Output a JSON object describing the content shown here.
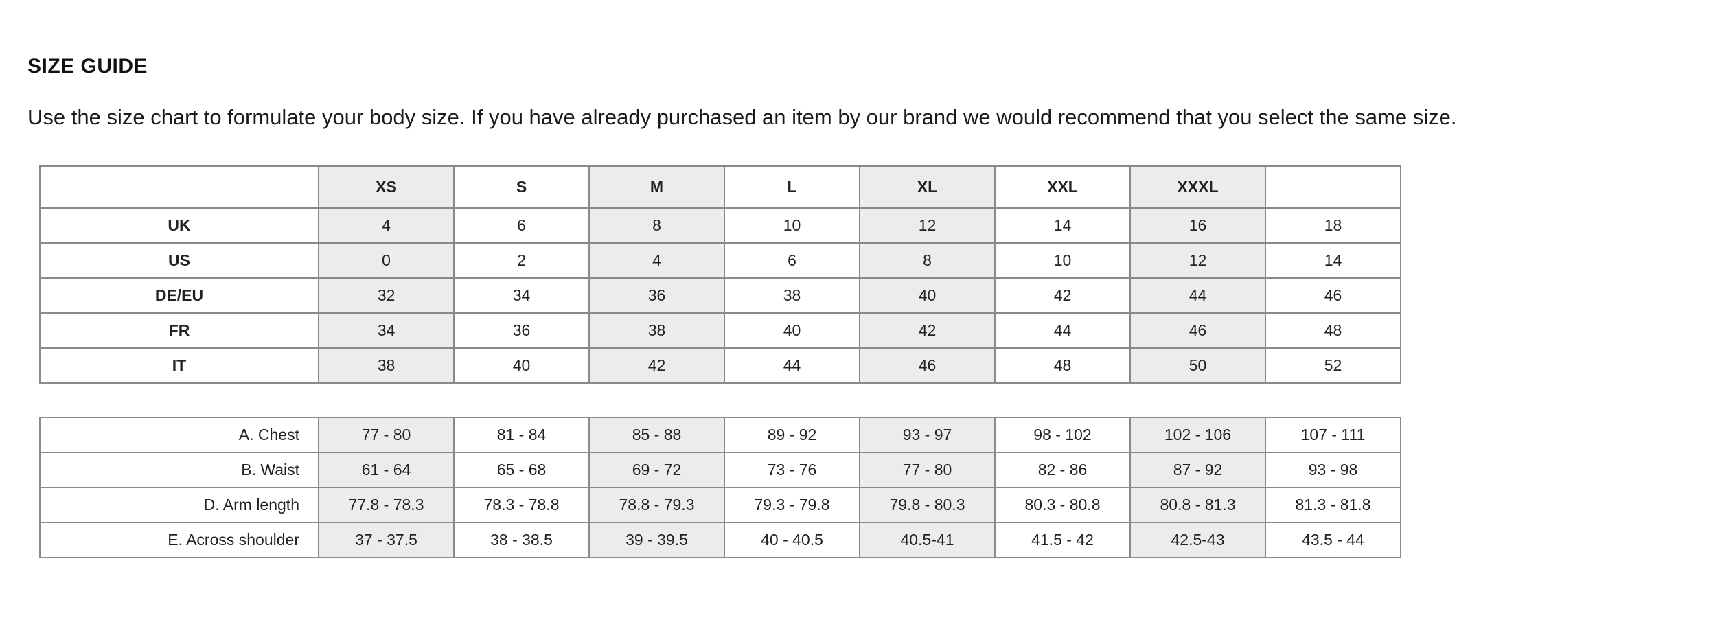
{
  "title": "SIZE GUIDE",
  "intro": "Use the size chart to formulate your body size. If you have already purchased an item by our brand we would recommend that you select the same size.",
  "shade_color": "#ececec",
  "size_table": {
    "headers": [
      "",
      "XS",
      "S",
      "M",
      "L",
      "XL",
      "XXL",
      "XXXL",
      ""
    ],
    "rows": [
      {
        "label": "UK",
        "values": [
          "4",
          "6",
          "8",
          "10",
          "12",
          "14",
          "16",
          "18"
        ]
      },
      {
        "label": "US",
        "values": [
          "0",
          "2",
          "4",
          "6",
          "8",
          "10",
          "12",
          "14"
        ]
      },
      {
        "label": "DE/EU",
        "values": [
          "32",
          "34",
          "36",
          "38",
          "40",
          "42",
          "44",
          "46"
        ]
      },
      {
        "label": "FR",
        "values": [
          "34",
          "36",
          "38",
          "40",
          "42",
          "44",
          "46",
          "48"
        ]
      },
      {
        "label": "IT",
        "values": [
          "38",
          "40",
          "42",
          "44",
          "46",
          "48",
          "50",
          "52"
        ]
      }
    ]
  },
  "measure_table": {
    "rows": [
      {
        "label": "A. Chest",
        "values": [
          "77 - 80",
          "81 - 84",
          "85 - 88",
          "89 - 92",
          "93 - 97",
          "98 - 102",
          "102 - 106",
          "107 - 111"
        ]
      },
      {
        "label": "B. Waist",
        "values": [
          "61 - 64",
          "65 - 68",
          "69 - 72",
          "73 - 76",
          "77 - 80",
          "82 - 86",
          "87 - 92",
          "93 - 98"
        ]
      },
      {
        "label": "D. Arm length",
        "values": [
          "77.8 - 78.3",
          "78.3 - 78.8",
          "78.8 - 79.3",
          "79.3 - 79.8",
          "79.8 - 80.3",
          "80.3 - 80.8",
          "80.8 - 81.3",
          "81.3 - 81.8"
        ]
      },
      {
        "label": "E. Across shoulder",
        "values": [
          "37 - 37.5",
          "38 - 38.5",
          "39 - 39.5",
          "40 - 40.5",
          "40.5-41",
          "41.5 - 42",
          "42.5-43",
          "43.5 - 44"
        ]
      }
    ]
  }
}
